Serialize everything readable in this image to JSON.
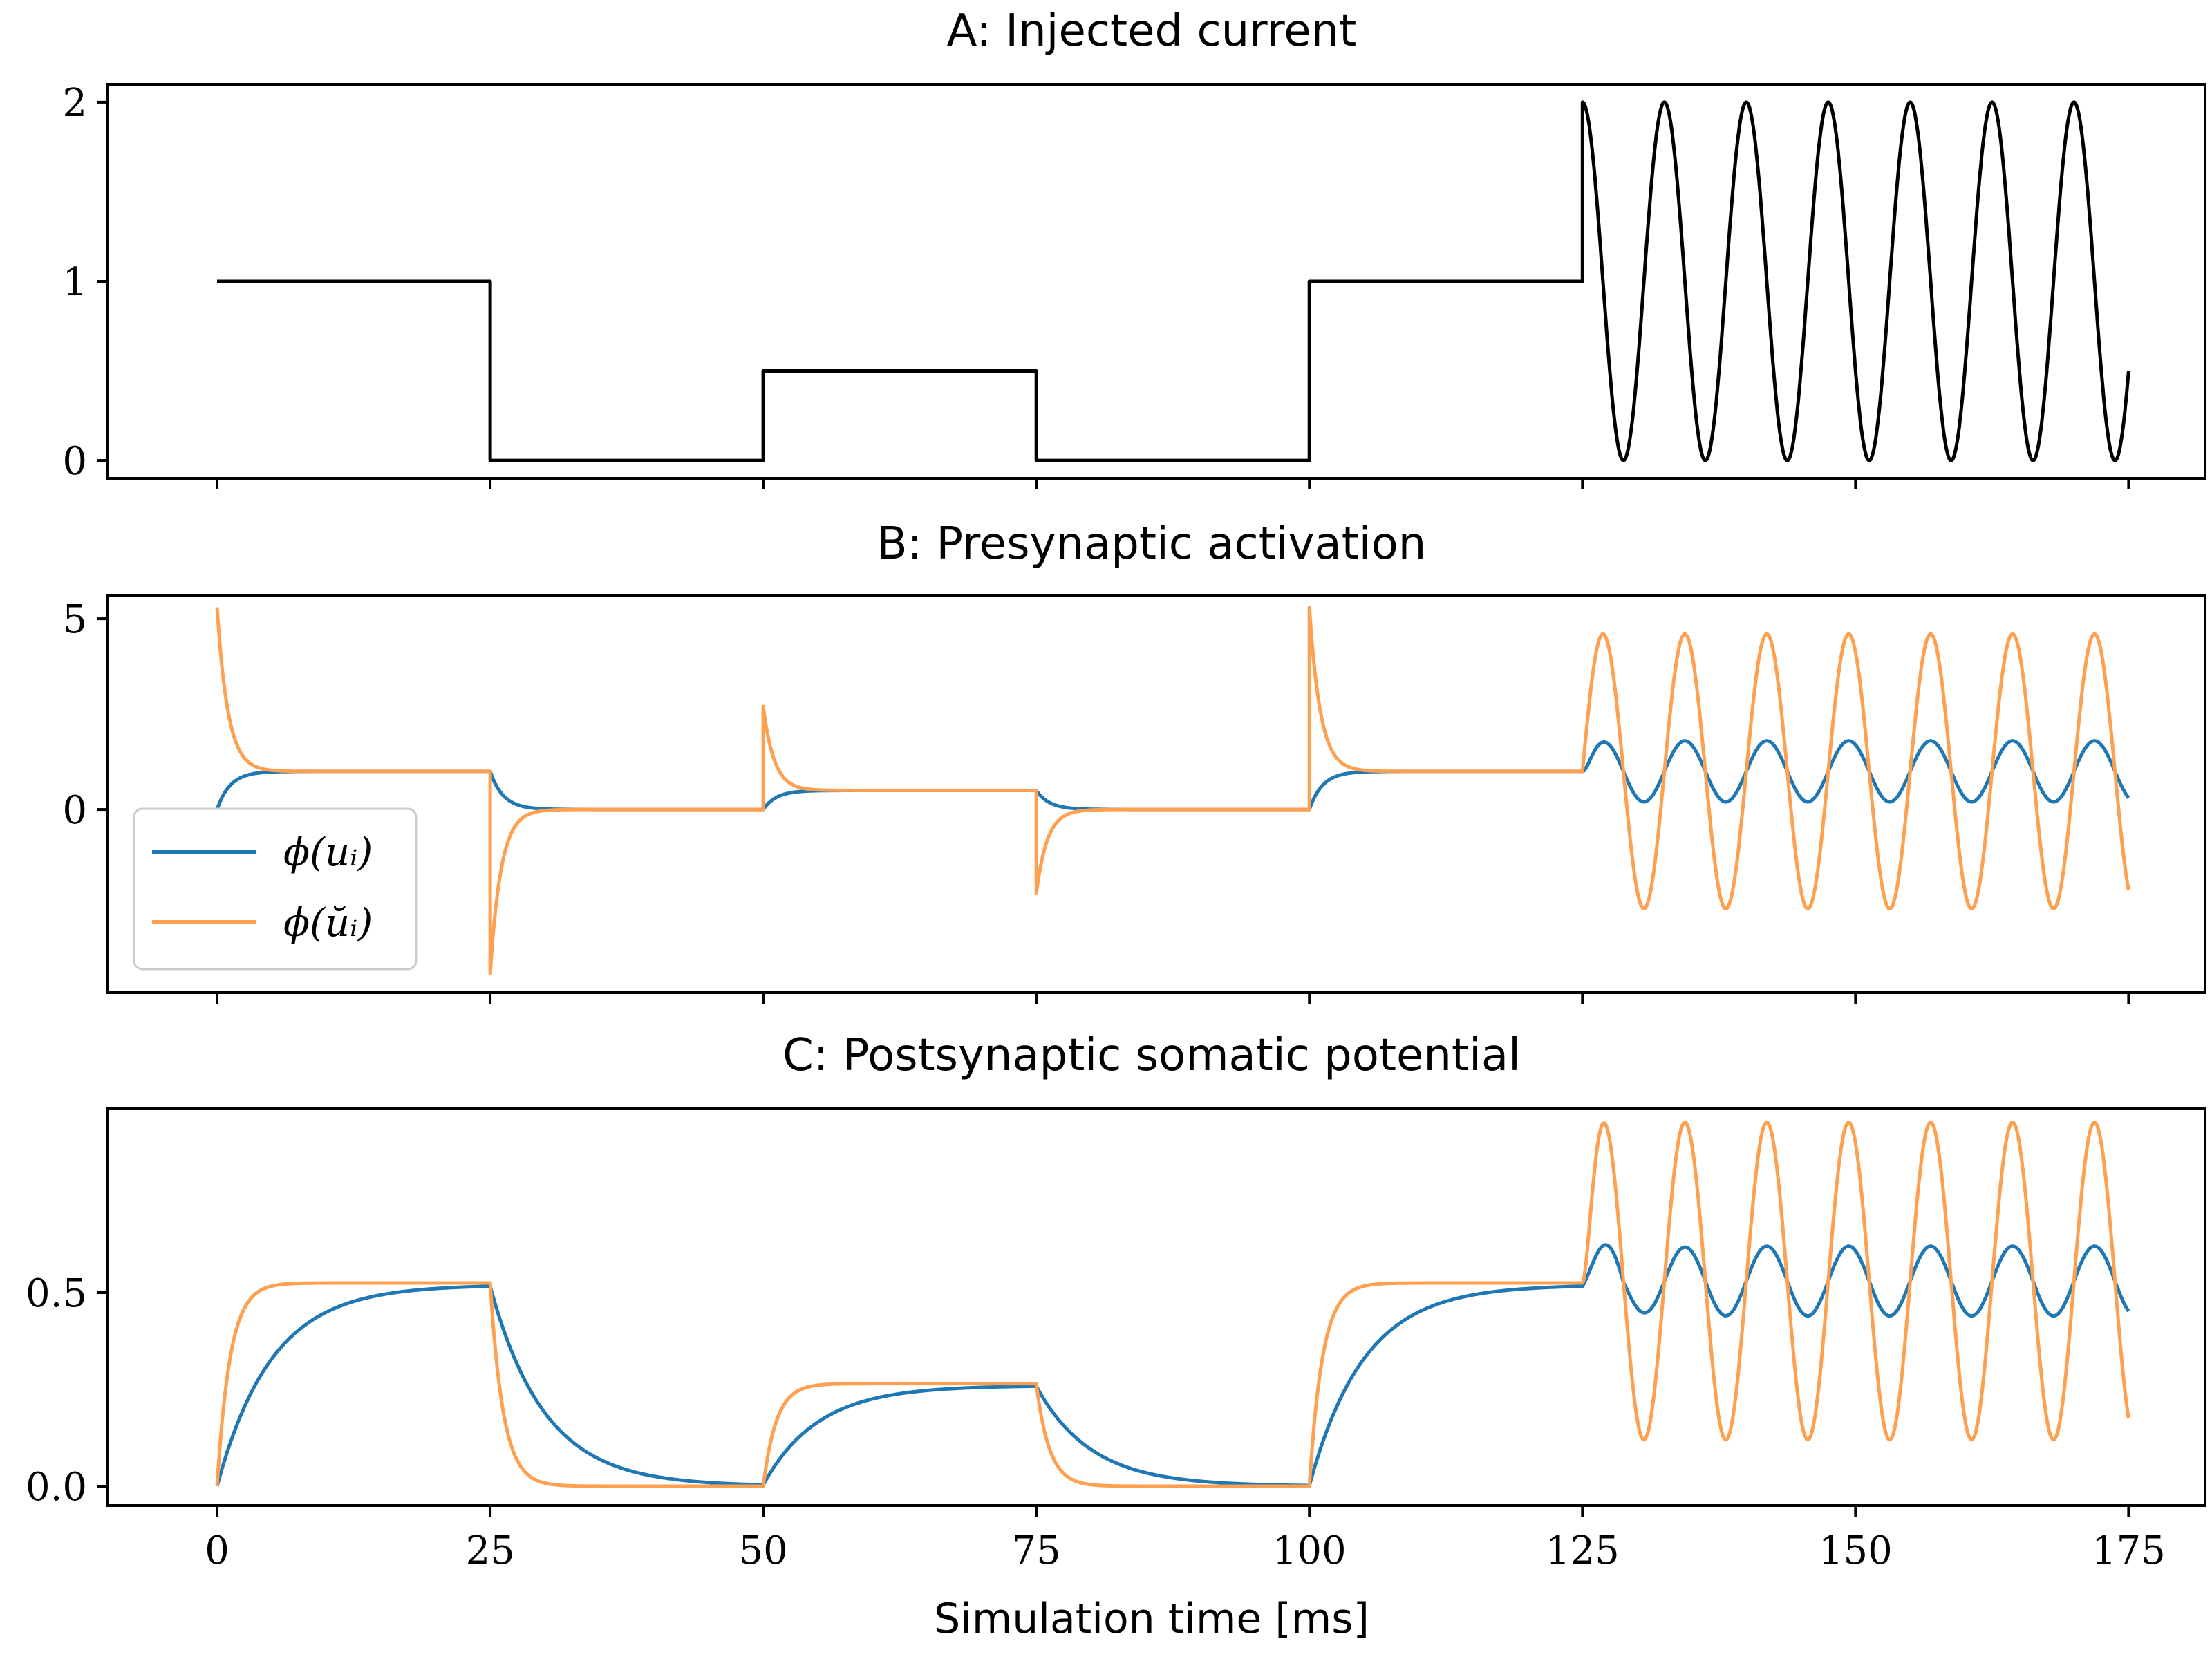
{
  "chart_data": [
    {
      "type": "line",
      "title": "A: Injected current",
      "xlabel": "",
      "ylabel": "",
      "xlim": [
        -10,
        182
      ],
      "ylim": [
        -0.1,
        2.1
      ],
      "yticks": [
        {
          "value": 0,
          "label": "0"
        },
        {
          "value": 1,
          "label": "1"
        },
        {
          "value": 2,
          "label": "2"
        }
      ],
      "xticks_labelled": false,
      "legend": null,
      "series": [
        {
          "color": "#000000",
          "segments": [
            {
              "kind": "step",
              "points": [
                [
                  0,
                  1
                ],
                [
                  25,
                  1
                ],
                [
                  25,
                  0
                ],
                [
                  50,
                  0
                ],
                [
                  50,
                  0.5
                ],
                [
                  75,
                  0.5
                ],
                [
                  75,
                  0
                ],
                [
                  100,
                  0
                ],
                [
                  100,
                  1
                ],
                [
                  125,
                  1
                ]
              ]
            },
            {
              "kind": "sine",
              "x0": 125,
              "x1": 175,
              "offset": 1,
              "amplitude": 1,
              "period": 7.5
            }
          ]
        }
      ]
    },
    {
      "type": "line",
      "title": "B: Presynaptic activation",
      "xlabel": "",
      "ylabel": "",
      "xlim": [
        -10,
        182
      ],
      "ylim": [
        -4.8,
        5.6
      ],
      "yticks": [
        {
          "value": 0,
          "label": "0"
        },
        {
          "value": 5,
          "label": "5"
        }
      ],
      "xticks_labelled": false,
      "legend": {
        "location": "lower-left"
      },
      "series": [
        {
          "name": "φ(u_i)",
          "legend_label": "ϕ(uᵢ)",
          "color": "#1f77b4",
          "step_levels": [
            [
              0,
              1
            ],
            [
              25,
              0
            ],
            [
              50,
              0.5
            ],
            [
              75,
              0
            ],
            [
              100,
              1
            ]
          ],
          "time_constant": 1.2,
          "oscillation": {
            "x0": 125,
            "x1": 175,
            "offset": 1.0,
            "amplitude": 0.8,
            "period": 7.5
          }
        },
        {
          "name": "φ(ŭ_i)",
          "legend_label": "ϕ(ŭᵢ)",
          "color": "#ffa050",
          "step_levels": [
            [
              0,
              1
            ],
            [
              25,
              0
            ],
            [
              50,
              0.5
            ],
            [
              75,
              0
            ],
            [
              100,
              1
            ]
          ],
          "spikes": [
            [
              0,
              5.3
            ],
            [
              25,
              -4.3
            ],
            [
              50,
              2.7
            ],
            [
              75,
              -2.2
            ],
            [
              100,
              5.3
            ]
          ],
          "spike_decay": 1.0,
          "oscillation": {
            "x0": 125,
            "x1": 175,
            "offset": 1.0,
            "amplitude": 3.6,
            "period": 7.5
          }
        }
      ]
    },
    {
      "type": "line",
      "title": "C: Postsynaptic somatic potential",
      "xlabel": "Simulation time [ms]",
      "ylabel": "",
      "xlim": [
        -10,
        182
      ],
      "ylim": [
        -0.05,
        0.975
      ],
      "yticks": [
        {
          "value": 0.0,
          "label": "0.0"
        },
        {
          "value": 0.5,
          "label": "0.5"
        }
      ],
      "xticks": [
        {
          "value": 0,
          "label": "0"
        },
        {
          "value": 25,
          "label": "25"
        },
        {
          "value": 50,
          "label": "50"
        },
        {
          "value": 75,
          "label": "75"
        },
        {
          "value": 100,
          "label": "100"
        },
        {
          "value": 125,
          "label": "125"
        },
        {
          "value": 150,
          "label": "150"
        },
        {
          "value": 175,
          "label": "175"
        }
      ],
      "legend": null,
      "series": [
        {
          "color": "#1f77b4",
          "step_levels": [
            [
              0,
              0.52
            ],
            [
              25,
              0.0
            ],
            [
              50,
              0.26
            ],
            [
              75,
              0.0
            ],
            [
              100,
              0.52
            ]
          ],
          "time_constant": 5.0,
          "oscillation": {
            "x0": 125,
            "x1": 175,
            "offset": 0.53,
            "amplitude": 0.09,
            "period": 7.5,
            "first_peak": 0.67
          }
        },
        {
          "color": "#ffa050",
          "step_levels": [
            [
              0,
              0.525
            ],
            [
              25,
              0.0
            ],
            [
              50,
              0.265
            ],
            [
              75,
              0.0
            ],
            [
              100,
              0.525
            ]
          ],
          "time_constant": 1.2,
          "oscillation": {
            "x0": 125,
            "x1": 175,
            "offset": 0.53,
            "amplitude": 0.41,
            "period": 7.5,
            "first_peak": 0.955
          }
        }
      ]
    }
  ]
}
